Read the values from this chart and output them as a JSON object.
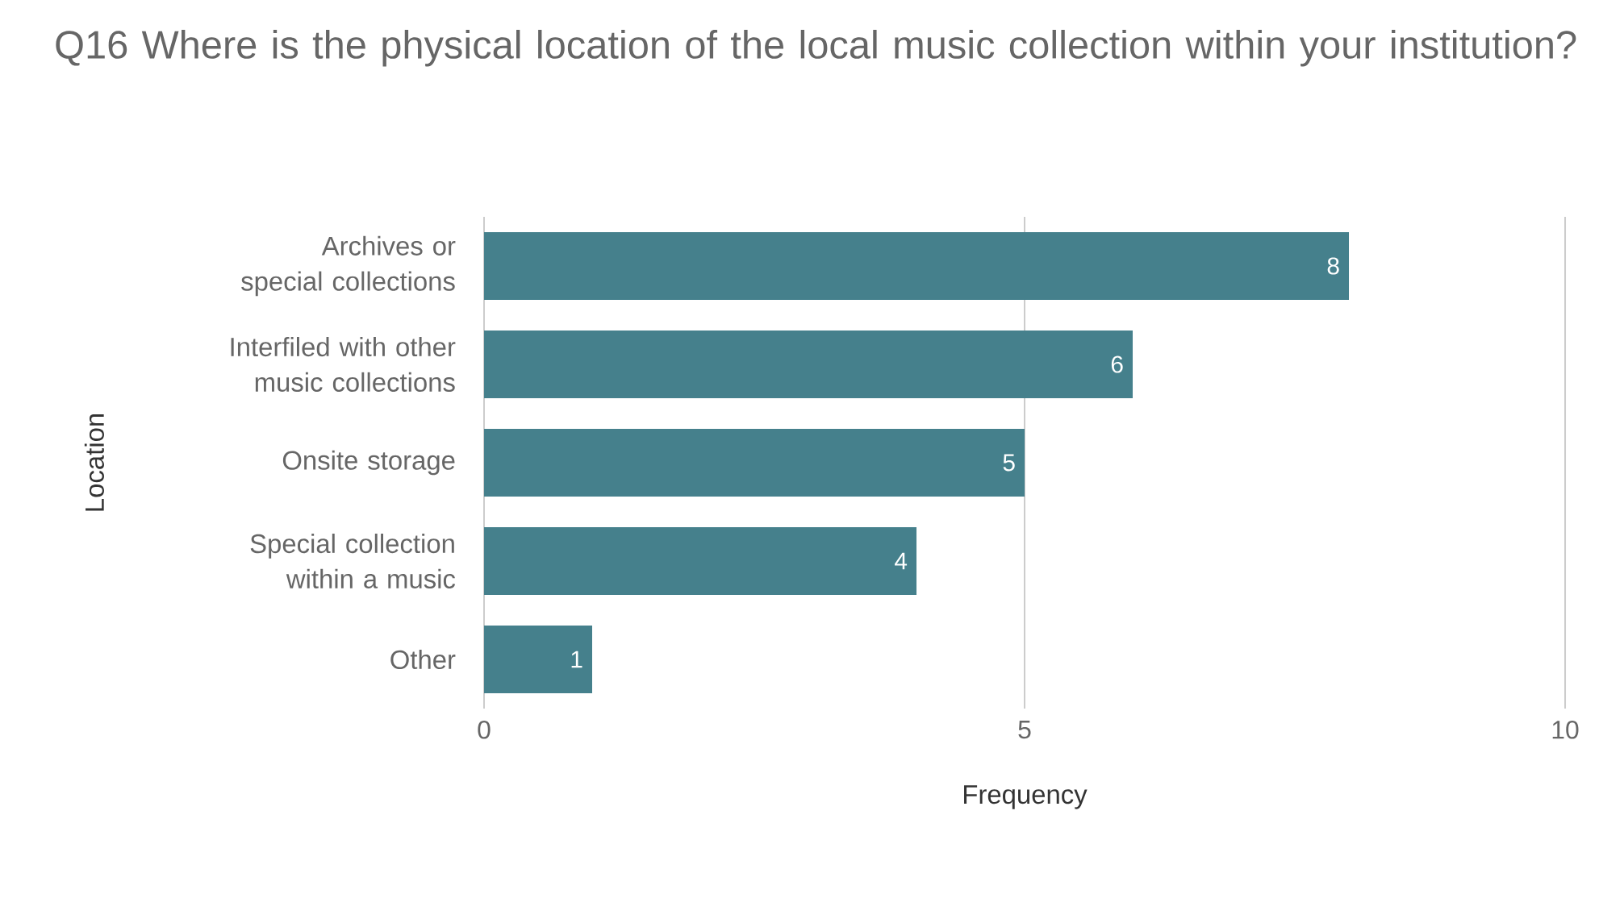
{
  "chart_data": {
    "type": "bar",
    "orientation": "horizontal",
    "title": "Q16 Where is the physical location of the local music collection within your institution?",
    "xlabel": "Frequency",
    "ylabel": "Location",
    "categories": [
      "Archives or special collections",
      "Interfiled with other music collections",
      "Onsite storage",
      "Special collection within a music",
      "Other"
    ],
    "values": [
      8,
      6,
      5,
      4,
      1
    ],
    "color": "#45808c",
    "xlim": [
      0,
      10
    ],
    "xticks": [
      0,
      5,
      10
    ],
    "grid": "x",
    "data_labels": true
  }
}
